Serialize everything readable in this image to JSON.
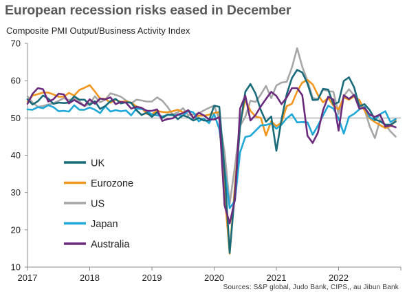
{
  "title": "European recession risks eased in December",
  "subtitle": "Composite PMI Output/Business Activity Index",
  "source": "Sources: S&P global, Judo Bank, CIPS,, au Jibun Bank",
  "chart_data": {
    "type": "line",
    "title": "European recession risks eased in December",
    "ylabel": "Composite PMI Output/Business Activity Index",
    "xlabel": "",
    "ylim": [
      10,
      70
    ],
    "yticks": [
      10,
      20,
      30,
      40,
      50,
      60,
      70
    ],
    "xlim": [
      2017.0,
      2022.917
    ],
    "xticks": [
      {
        "value": 2017,
        "label": "2017"
      },
      {
        "value": 2018,
        "label": "2018"
      },
      {
        "value": 2019,
        "label": "2019"
      },
      {
        "value": 2020,
        "label": "2020"
      },
      {
        "value": 2021,
        "label": "2021"
      },
      {
        "value": 2022,
        "label": "2022"
      }
    ],
    "reference_line": 50,
    "grid": false,
    "legend_placement": "left-middle",
    "x_unit": "monthly, Jan 2017 to Dec 2022",
    "series": [
      {
        "name": "UK",
        "color": "#1a6b7a",
        "values": [
          55.0,
          53.6,
          54.5,
          56.0,
          55.2,
          53.8,
          54.1,
          54.0,
          54.1,
          55.8,
          54.9,
          54.9,
          53.5,
          54.5,
          52.4,
          53.2,
          54.5,
          55.1,
          53.9,
          54.2,
          54.1,
          52.1,
          50.8,
          51.4,
          50.3,
          51.5,
          50.0,
          50.9,
          50.9,
          49.7,
          50.7,
          50.2,
          49.3,
          50.0,
          49.3,
          49.3,
          53.3,
          53.0,
          36.0,
          13.8,
          30.0,
          47.7,
          57.0,
          59.1,
          56.5,
          52.1,
          49.0,
          50.4,
          41.2,
          49.6,
          56.4,
          60.7,
          62.9,
          62.2,
          59.2,
          54.8,
          54.9,
          57.8,
          57.6,
          53.6,
          54.2,
          59.9,
          60.9,
          58.2,
          53.1,
          53.7,
          52.1,
          49.6,
          49.1,
          48.2,
          48.2,
          49.0
        ]
      },
      {
        "name": "Eurozone",
        "color": "#f2951c",
        "values": [
          54.4,
          56.0,
          56.4,
          56.8,
          56.8,
          56.3,
          55.7,
          55.7,
          56.7,
          56.0,
          57.5,
          58.1,
          58.8,
          57.1,
          55.2,
          55.1,
          54.1,
          54.9,
          54.3,
          54.5,
          54.1,
          53.1,
          52.7,
          51.1,
          51.0,
          51.9,
          51.6,
          51.5,
          51.8,
          52.2,
          51.5,
          51.9,
          50.1,
          50.6,
          50.6,
          50.9,
          51.3,
          51.6,
          29.7,
          13.6,
          31.9,
          48.5,
          54.9,
          51.9,
          50.4,
          50.0,
          45.3,
          49.1,
          47.8,
          48.8,
          53.2,
          53.8,
          57.1,
          59.5,
          60.2,
          59.0,
          56.2,
          54.2,
          55.4,
          53.3,
          52.3,
          55.5,
          54.9,
          55.8,
          54.8,
          52.0,
          49.9,
          48.9,
          48.1,
          47.3,
          47.8,
          49.3
        ]
      },
      {
        "name": "US",
        "color": "#a6a6a6",
        "values": [
          55.8,
          54.1,
          53.0,
          53.2,
          53.6,
          53.9,
          54.6,
          55.3,
          54.8,
          55.2,
          54.5,
          53.2,
          53.8,
          55.8,
          54.2,
          54.9,
          56.6,
          56.2,
          55.7,
          54.7,
          53.9,
          54.9,
          54.7,
          54.4,
          54.4,
          55.5,
          54.6,
          53.0,
          50.9,
          51.5,
          52.6,
          50.7,
          51.0,
          51.2,
          52.0,
          52.7,
          53.3,
          49.6,
          40.9,
          27.0,
          37.0,
          47.9,
          50.3,
          54.6,
          54.3,
          56.3,
          58.6,
          55.3,
          58.7,
          59.5,
          59.7,
          63.5,
          68.7,
          63.7,
          59.9,
          55.4,
          55.0,
          57.6,
          57.2,
          57.0,
          51.1,
          55.9,
          57.7,
          56.0,
          53.6,
          52.3,
          47.7,
          44.6,
          49.5,
          48.2,
          46.4,
          45.0
        ]
      },
      {
        "name": "Japan",
        "color": "#1fa7d8",
        "values": [
          52.3,
          52.2,
          52.9,
          52.6,
          53.4,
          52.9,
          51.8,
          51.9,
          51.7,
          53.4,
          52.2,
          52.2,
          52.8,
          52.2,
          51.3,
          53.1,
          51.7,
          52.1,
          51.8,
          52.0,
          50.7,
          52.5,
          52.4,
          52.0,
          50.9,
          50.7,
          50.4,
          50.8,
          50.7,
          50.8,
          50.6,
          51.9,
          51.5,
          49.1,
          49.8,
          48.6,
          51.0,
          47.0,
          36.2,
          25.8,
          27.8,
          40.8,
          44.9,
          45.2,
          46.6,
          48.0,
          48.1,
          48.5,
          47.1,
          48.2,
          49.9,
          51.0,
          48.8,
          48.9,
          48.8,
          45.5,
          47.9,
          50.7,
          53.3,
          52.5,
          49.9,
          45.8,
          50.3,
          51.1,
          52.3,
          53.0,
          50.2,
          49.4,
          51.0,
          51.8,
          48.9,
          49.7
        ]
      },
      {
        "name": "Australia",
        "color": "#6b2b7d",
        "values": [
          53.8,
          56.5,
          58.0,
          57.7,
          54.4,
          55.0,
          56.5,
          56.3,
          53.9,
          54.8,
          54.0,
          53.2,
          55.0,
          53.8,
          55.2,
          55.0,
          55.5,
          53.7,
          54.3,
          54.1,
          52.5,
          53.0,
          52.7,
          51.9,
          51.9,
          52.3,
          49.2,
          49.7,
          49.9,
          50.9,
          51.3,
          52.1,
          49.9,
          51.4,
          50.7,
          49.6,
          49.6,
          50.2,
          26.6,
          21.7,
          28.1,
          52.5,
          56.0,
          49.3,
          50.8,
          53.1,
          55.1,
          57.0,
          55.9,
          53.7,
          55.5,
          58.0,
          58.0,
          56.1,
          45.2,
          43.3,
          46.0,
          52.1,
          55.7,
          54.9,
          46.6,
          56.1,
          55.1,
          56.2,
          52.5,
          52.7,
          50.9,
          50.3,
          50.9,
          47.7,
          48.0,
          47.5
        ]
      }
    ]
  }
}
